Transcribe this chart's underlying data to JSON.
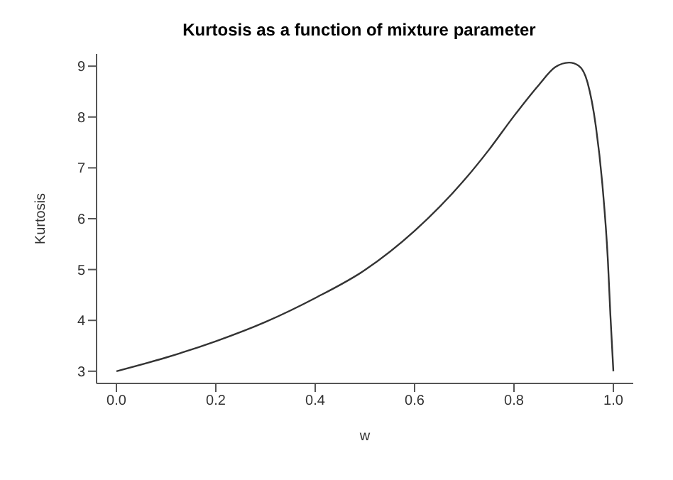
{
  "chart_data": {
    "type": "line",
    "title": "Kurtosis as a function of mixture parameter",
    "xlabel": "w",
    "ylabel": "Kurtosis",
    "x": [
      0,
      0.1,
      0.2,
      0.3,
      0.4,
      0.5,
      0.6,
      0.7,
      0.75,
      0.8,
      0.85,
      0.883,
      0.911,
      0.93,
      0.948,
      0.965,
      0.978,
      0.989,
      0.994,
      1.0
    ],
    "series": [
      {
        "color": "#333333",
        "values": [
          3.0,
          3.27,
          3.59,
          3.97,
          4.44,
          4.99,
          5.76,
          6.76,
          7.36,
          8.02,
          8.63,
          8.98,
          9.07,
          9.01,
          8.68,
          7.8,
          6.66,
          5.17,
          4.11,
          3.0
        ]
      }
    ],
    "xlim": [
      -0.04,
      1.04
    ],
    "ylim": [
      2.76,
      9.24
    ],
    "xticks": [
      {
        "value": 0,
        "label": "0.0"
      },
      0.2,
      0.4,
      0.6,
      0.8,
      {
        "value": 1,
        "label": "1.0"
      }
    ],
    "yticks": [
      3,
      4,
      5,
      6,
      7,
      8,
      9
    ],
    "marker": "none",
    "line_style": "solid",
    "grid": false,
    "legend": false
  }
}
